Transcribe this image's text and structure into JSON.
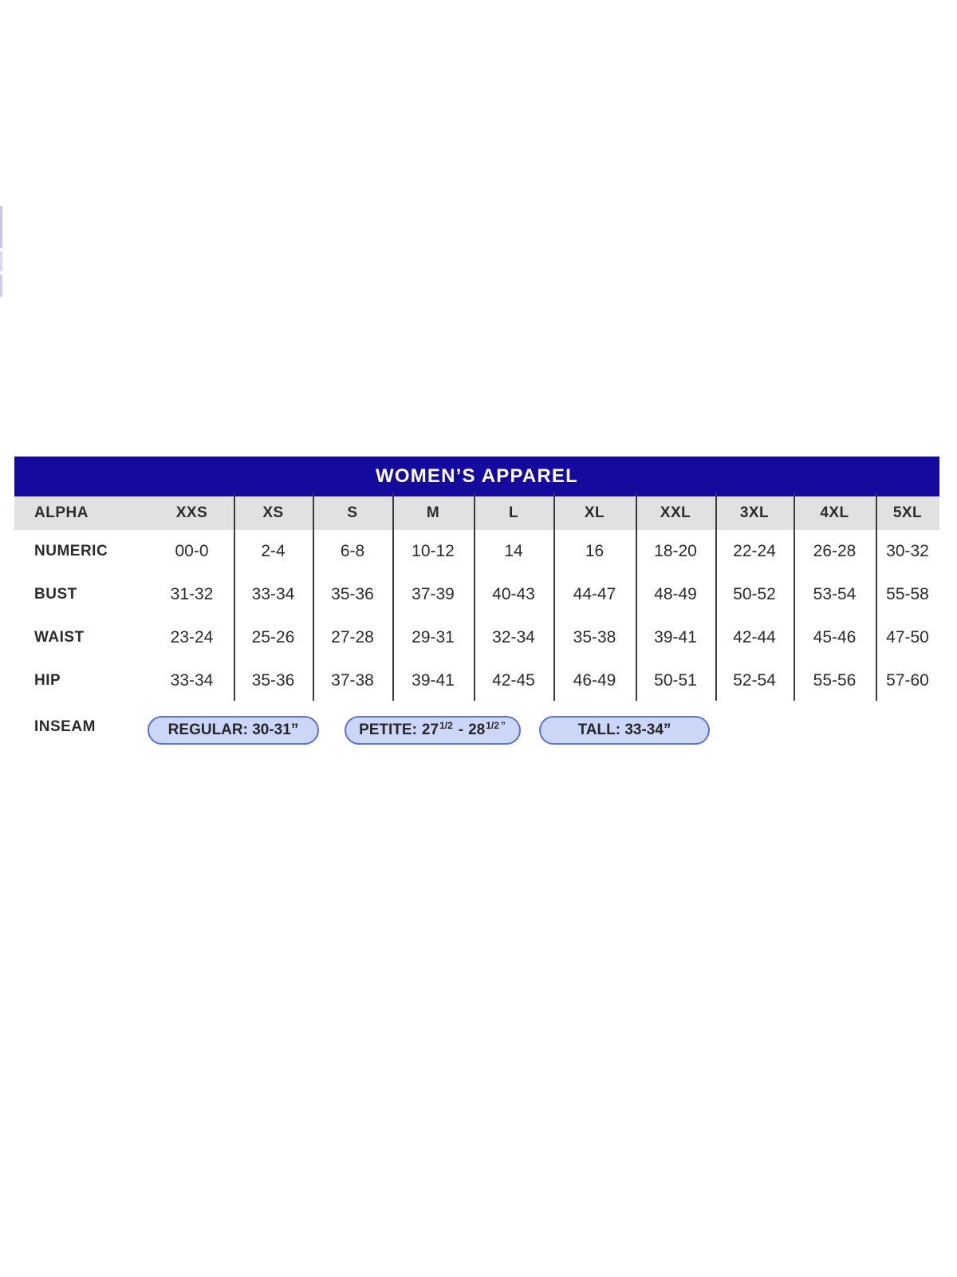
{
  "colors": {
    "header-bg": "#150a9e",
    "title-text": "#ffffff",
    "subheader-bg": "#e1e1e1",
    "text": "#2b2b2b",
    "pill-fill": "#ccd6f7",
    "pill-border": "#5a72d8"
  },
  "size_chart": {
    "title": "WOMEN’S APPAREL",
    "rows": [
      {
        "label": "ALPHA",
        "values": [
          "XXS",
          "XS",
          "S",
          "M",
          "L",
          "XL",
          "XXL",
          "3XL",
          "4XL",
          "5XL"
        ]
      },
      {
        "label": "NUMERIC",
        "values": [
          "00-0",
          "2-4",
          "6-8",
          "10-12",
          "14",
          "16",
          "18-20",
          "22-24",
          "26-28",
          "30-32"
        ]
      },
      {
        "label": "BUST",
        "values": [
          "31-32",
          "33-34",
          "35-36",
          "37-39",
          "40-43",
          "44-47",
          "48-49",
          "50-52",
          "53-54",
          "55-58"
        ]
      },
      {
        "label": "WAIST",
        "values": [
          "23-24",
          "25-26",
          "27-28",
          "29-31",
          "32-34",
          "35-38",
          "39-41",
          "42-44",
          "45-46",
          "47-50"
        ]
      },
      {
        "label": "HIP",
        "values": [
          "33-34",
          "35-36",
          "37-38",
          "39-41",
          "42-45",
          "46-49",
          "50-51",
          "52-54",
          "55-56",
          "57-60"
        ]
      }
    ],
    "inseam": {
      "label": "INSEAM",
      "options": [
        {
          "name": "regular",
          "text": "REGULAR: 30-31”"
        },
        {
          "name": "petite",
          "label": "PETITE:",
          "v1": "27",
          "f1": "1/2",
          "sep": "-",
          "v2": "28",
          "f2": "1/2",
          "quote": "”"
        },
        {
          "name": "tall",
          "text": "TALL: 33-34”"
        }
      ]
    }
  },
  "chart_data": {
    "type": "table",
    "title": "WOMEN’S APPAREL",
    "columns": [
      "ALPHA",
      "XXS",
      "XS",
      "S",
      "M",
      "L",
      "XL",
      "XXL",
      "3XL",
      "4XL",
      "5XL"
    ],
    "rows": [
      [
        "NUMERIC",
        "00-0",
        "2-4",
        "6-8",
        "10-12",
        "14",
        "16",
        "18-20",
        "22-24",
        "26-28",
        "30-32"
      ],
      [
        "BUST",
        "31-32",
        "33-34",
        "35-36",
        "37-39",
        "40-43",
        "44-47",
        "48-49",
        "50-52",
        "53-54",
        "55-58"
      ],
      [
        "WAIST",
        "23-24",
        "25-26",
        "27-28",
        "29-31",
        "32-34",
        "35-38",
        "39-41",
        "42-44",
        "45-46",
        "47-50"
      ],
      [
        "HIP",
        "33-34",
        "35-36",
        "37-38",
        "39-41",
        "42-45",
        "46-49",
        "50-51",
        "52-54",
        "55-56",
        "57-60"
      ]
    ],
    "inseam": [
      "REGULAR: 30-31”",
      "PETITE: 27 1/2 - 28 1/2”",
      "TALL: 33-34”"
    ]
  }
}
